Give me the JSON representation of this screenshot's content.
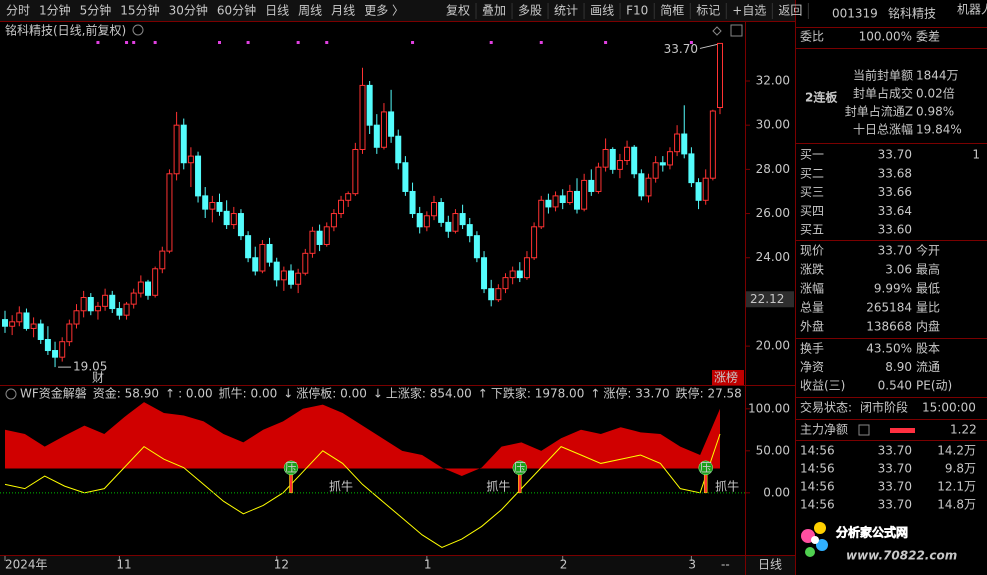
{
  "toolbar": {
    "periods": [
      "分时",
      "1分钟",
      "5分钟",
      "15分钟",
      "30分钟",
      "60分钟",
      "日线",
      "周线",
      "月线",
      "更多 〉"
    ],
    "active_index": 6,
    "active_color": "#3c8cff",
    "buttons": [
      "复权",
      "叠加",
      "多股",
      "统计",
      "画线",
      "F10",
      "简框",
      "标记",
      "+自选",
      "返回"
    ]
  },
  "chart_data": [
    {
      "type": "candlestick",
      "title": "铭科精技(日线,前复权)",
      "up_color": "#ff3232",
      "down_color": "#54fcfc",
      "candles": [
        [
          21.2,
          21.6,
          20.6,
          20.9
        ],
        [
          20.9,
          21.4,
          20.5,
          21.1
        ],
        [
          21.1,
          21.8,
          20.9,
          21.5
        ],
        [
          21.5,
          21.7,
          20.7,
          20.8
        ],
        [
          20.8,
          21.3,
          20.4,
          21.0
        ],
        [
          21.0,
          21.2,
          20.1,
          20.3
        ],
        [
          20.3,
          20.9,
          19.6,
          19.8
        ],
        [
          19.8,
          20.2,
          19.05,
          19.5
        ],
        [
          19.5,
          20.4,
          19.3,
          20.2
        ],
        [
          20.2,
          21.2,
          20.0,
          21.0
        ],
        [
          21.0,
          21.9,
          20.8,
          21.6
        ],
        [
          21.6,
          22.5,
          21.3,
          22.2
        ],
        [
          22.2,
          22.4,
          21.4,
          21.6
        ],
        [
          21.6,
          22.0,
          21.2,
          21.8
        ],
        [
          21.8,
          22.6,
          21.6,
          22.3
        ],
        [
          22.3,
          22.5,
          21.5,
          21.7
        ],
        [
          21.7,
          22.0,
          21.2,
          21.4
        ],
        [
          21.4,
          22.0,
          21.2,
          21.9
        ],
        [
          21.9,
          22.6,
          21.7,
          22.4
        ],
        [
          22.4,
          23.2,
          22.2,
          22.9
        ],
        [
          22.9,
          23.0,
          22.1,
          22.3
        ],
        [
          22.3,
          23.6,
          22.2,
          23.5
        ],
        [
          23.5,
          24.5,
          23.3,
          24.3
        ],
        [
          24.3,
          28.0,
          24.2,
          27.8
        ],
        [
          27.8,
          30.6,
          27.5,
          30.0
        ],
        [
          30.0,
          30.3,
          28.0,
          28.3
        ],
        [
          28.3,
          29.0,
          27.2,
          28.6
        ],
        [
          28.6,
          28.8,
          26.5,
          26.8
        ],
        [
          26.8,
          27.2,
          25.8,
          26.2
        ],
        [
          26.2,
          26.8,
          25.6,
          26.5
        ],
        [
          26.5,
          26.9,
          25.9,
          26.1
        ],
        [
          26.1,
          26.6,
          25.3,
          25.5
        ],
        [
          25.5,
          26.3,
          25.3,
          26.0
        ],
        [
          26.0,
          26.2,
          24.8,
          25.0
        ],
        [
          25.0,
          25.2,
          23.8,
          24.0
        ],
        [
          24.0,
          24.5,
          23.2,
          23.4
        ],
        [
          23.4,
          24.8,
          23.3,
          24.6
        ],
        [
          24.6,
          24.9,
          23.6,
          23.8
        ],
        [
          23.8,
          24.0,
          22.7,
          23.0
        ],
        [
          23.0,
          23.6,
          22.5,
          23.4
        ],
        [
          23.4,
          23.7,
          22.6,
          22.8
        ],
        [
          22.8,
          23.5,
          22.4,
          23.3
        ],
        [
          23.3,
          24.4,
          23.2,
          24.2
        ],
        [
          24.2,
          25.4,
          24.0,
          25.2
        ],
        [
          25.2,
          25.5,
          24.3,
          24.6
        ],
        [
          24.6,
          25.6,
          24.5,
          25.4
        ],
        [
          25.4,
          26.2,
          25.2,
          26.0
        ],
        [
          26.0,
          26.8,
          25.8,
          26.6
        ],
        [
          26.6,
          27.0,
          26.3,
          26.9
        ],
        [
          26.9,
          29.2,
          26.8,
          28.9
        ],
        [
          28.9,
          32.6,
          28.7,
          31.8
        ],
        [
          31.8,
          32.0,
          29.6,
          30.0
        ],
        [
          30.0,
          30.5,
          28.7,
          29.0
        ],
        [
          29.0,
          31.0,
          28.9,
          30.6
        ],
        [
          30.6,
          31.6,
          29.2,
          29.5
        ],
        [
          29.5,
          29.8,
          28.0,
          28.3
        ],
        [
          28.3,
          28.6,
          26.8,
          27.0
        ],
        [
          27.0,
          27.4,
          25.8,
          26.0
        ],
        [
          26.0,
          26.3,
          25.1,
          25.4
        ],
        [
          25.4,
          26.1,
          25.2,
          25.9
        ],
        [
          25.9,
          26.8,
          25.7,
          26.5
        ],
        [
          26.5,
          26.7,
          25.4,
          25.6
        ],
        [
          25.6,
          25.9,
          24.9,
          25.2
        ],
        [
          25.2,
          26.2,
          25.1,
          26.0
        ],
        [
          26.0,
          26.4,
          25.3,
          25.5
        ],
        [
          25.5,
          25.8,
          24.7,
          25.0
        ],
        [
          25.0,
          25.2,
          23.8,
          24.0
        ],
        [
          24.0,
          24.3,
          22.4,
          22.6
        ],
        [
          22.6,
          23.0,
          21.8,
          22.1
        ],
        [
          22.1,
          22.8,
          22.0,
          22.6
        ],
        [
          22.6,
          23.3,
          22.4,
          23.1
        ],
        [
          23.1,
          23.6,
          22.8,
          23.4
        ],
        [
          23.4,
          23.8,
          22.9,
          23.1
        ],
        [
          23.1,
          24.3,
          23.0,
          24.0
        ],
        [
          24.0,
          25.6,
          23.9,
          25.4
        ],
        [
          25.4,
          26.8,
          25.3,
          26.6
        ],
        [
          26.6,
          26.9,
          26.0,
          26.3
        ],
        [
          26.3,
          27.0,
          26.1,
          26.8
        ],
        [
          26.8,
          27.1,
          26.2,
          26.5
        ],
        [
          26.5,
          27.3,
          26.4,
          27.0
        ],
        [
          27.0,
          27.6,
          26.0,
          26.2
        ],
        [
          26.2,
          27.8,
          26.1,
          27.5
        ],
        [
          27.5,
          28.0,
          26.8,
          27.0
        ],
        [
          27.0,
          28.3,
          26.9,
          28.1
        ],
        [
          28.1,
          29.4,
          27.9,
          28.9
        ],
        [
          28.9,
          29.0,
          27.8,
          28.0
        ],
        [
          28.0,
          28.7,
          27.6,
          28.4
        ],
        [
          28.4,
          29.3,
          28.2,
          29.0
        ],
        [
          29.0,
          29.1,
          27.6,
          27.8
        ],
        [
          27.8,
          28.0,
          26.6,
          26.8
        ],
        [
          26.8,
          27.8,
          26.5,
          27.6
        ],
        [
          27.6,
          28.6,
          27.4,
          28.3
        ],
        [
          28.3,
          28.6,
          27.9,
          28.2
        ],
        [
          28.2,
          29.0,
          28.0,
          28.8
        ],
        [
          28.8,
          30.0,
          28.6,
          29.6
        ],
        [
          29.6,
          30.9,
          28.5,
          28.7
        ],
        [
          28.7,
          29.0,
          27.2,
          27.4
        ],
        [
          27.4,
          27.6,
          26.2,
          26.6
        ],
        [
          26.6,
          28.0,
          26.4,
          27.6
        ],
        [
          27.6,
          30.7,
          27.5,
          30.64
        ],
        [
          30.8,
          33.7,
          30.5,
          33.7
        ]
      ],
      "ylim": [
        18.24,
        34.67
      ],
      "yticks": [
        {
          "value": 20,
          "label": "20.00"
        },
        {
          "value": 22,
          "label": "22.00"
        },
        {
          "value": 24,
          "label": "24.00"
        },
        {
          "value": 26,
          "label": "26.00"
        },
        {
          "value": 28,
          "label": "28.00"
        },
        {
          "value": 30,
          "label": "30.00"
        },
        {
          "value": 32,
          "label": "32.00"
        }
      ],
      "cursor_label": {
        "value": 22.12,
        "label": "22.12"
      },
      "high": {
        "index": 100,
        "value": 33.7,
        "label": "33.70"
      },
      "low": {
        "index": 7,
        "value": 19.05,
        "label": "19.05"
      },
      "top_markers": [
        13,
        17,
        18,
        21,
        30,
        34,
        41,
        45,
        57,
        68,
        75,
        84,
        96
      ],
      "marker_color": "#e040e0",
      "tags": [
        "财",
        "涨榜"
      ],
      "xticks": [
        {
          "value": 0,
          "label": "2024年"
        },
        {
          "value": 16,
          "label": "11"
        },
        {
          "value": 38,
          "label": "12"
        },
        {
          "value": 59,
          "label": "1"
        },
        {
          "value": 78,
          "label": "2"
        },
        {
          "value": 96,
          "label": "3"
        }
      ]
    },
    {
      "type": "indicator",
      "legend": [
        {
          "text": "WF资金解磐",
          "color": "#c8c8c8"
        },
        {
          "text": "资金: 58.90",
          "color": "#ffff00"
        },
        {
          "text": "↑",
          "color": "#ff40ff"
        },
        {
          "text": ": 0.00",
          "color": "#ff40ff"
        },
        {
          "text": "抓牛: 0.00",
          "color": "#00e000"
        },
        {
          "text": "↓",
          "color": "#c8c8c8"
        },
        {
          "text": "涨停板: 0.00",
          "color": "#54fcfc"
        },
        {
          "text": "↓",
          "color": "#c8c8c8"
        },
        {
          "text": "上涨家: 854.00",
          "color": "#ff8000"
        },
        {
          "text": "↑",
          "color": "#ff3232"
        },
        {
          "text": "下跌家: 1978.00",
          "color": "#00e000"
        },
        {
          "text": "↑",
          "color": "#ff3232"
        },
        {
          "text": "涨停: 33.70",
          "color": "#ff3232"
        },
        {
          "text": "跌停: 27.58",
          "color": "#00e000"
        }
      ],
      "series": [
        {
          "style": "area",
          "color": "#d00000",
          "base": 29,
          "values": [
            75,
            70,
            55,
            68,
            80,
            70,
            90,
            108,
            95,
            92,
            85,
            70,
            60,
            75,
            85,
            100,
            105,
            95,
            80,
            65,
            50,
            45,
            30,
            20,
            30,
            55,
            60,
            50,
            65,
            75,
            70,
            78,
            72,
            70,
            55,
            45,
            100
          ]
        },
        {
          "style": "line",
          "color": "#ffff00",
          "values": [
            10,
            5,
            20,
            8,
            0,
            5,
            30,
            55,
            40,
            30,
            10,
            -10,
            -25,
            -15,
            0,
            25,
            50,
            35,
            10,
            -10,
            -30,
            -50,
            -65,
            -55,
            -40,
            -20,
            5,
            30,
            55,
            45,
            35,
            40,
            45,
            35,
            5,
            0,
            70
          ]
        }
      ],
      "reference_line": 0,
      "reference_color": "#00c000",
      "ylim": [
        -74,
        120
      ],
      "yticks": [
        {
          "value": 0,
          "label": "0.00"
        },
        {
          "value": 50,
          "label": "50.00"
        },
        {
          "value": 100,
          "label": "100.00"
        }
      ],
      "signals": [
        {
          "index": 40,
          "mark": "压"
        },
        {
          "index": 72,
          "mark": "压"
        },
        {
          "index": 98,
          "mark": "压"
        }
      ],
      "annotations": [
        {
          "index": 47,
          "text": "抓牛"
        },
        {
          "index": 69,
          "text": "抓牛"
        },
        {
          "index": 101,
          "text": "抓牛"
        }
      ]
    }
  ],
  "bottom_bar": {
    "dash": "--",
    "period": "日线"
  },
  "quote_panel": {
    "code": "001319",
    "name": "铭科精技",
    "badge": "机器人",
    "weibi": [
      "委比",
      "100.00%",
      "委差"
    ],
    "streak": "2连板",
    "seal_rows": [
      [
        "当前封单额",
        "1844万"
      ],
      [
        "封单占成交",
        "0.02倍"
      ],
      [
        "封单占流通Z",
        "0.98%"
      ],
      [
        "十日总涨幅",
        "19.84%"
      ]
    ],
    "bids": [
      [
        "买一",
        "33.70",
        "1"
      ],
      [
        "买二",
        "33.68"
      ],
      [
        "买三",
        "33.66"
      ],
      [
        "买四",
        "33.64"
      ],
      [
        "买五",
        "33.60"
      ]
    ],
    "stats": [
      [
        "现价",
        "33.70",
        "今开"
      ],
      [
        "涨跌",
        "3.06",
        "最高"
      ],
      [
        "涨幅",
        "9.99%",
        "最低"
      ],
      [
        "总量",
        "265184",
        "量比"
      ],
      [
        "外盘",
        "138668",
        "内盘"
      ]
    ],
    "stats2": [
      [
        "换手",
        "43.50%",
        "股本"
      ],
      [
        "净资",
        "8.90",
        "流通"
      ],
      [
        "收益(三)",
        "0.540",
        "PE(动)"
      ]
    ],
    "status": [
      "交易状态:",
      "闭市阶段",
      "15:00:00"
    ],
    "main_net": [
      "主力净额",
      "1.22"
    ],
    "trades": [
      [
        "14:56",
        "33.70",
        "14.2万"
      ],
      [
        "14:56",
        "33.70",
        "9.8万"
      ],
      [
        "14:56",
        "33.70",
        "12.1万"
      ],
      [
        "14:56",
        "33.70",
        "14.8万"
      ]
    ],
    "watermark": [
      "分析家公式网",
      "www.70822.com"
    ]
  }
}
